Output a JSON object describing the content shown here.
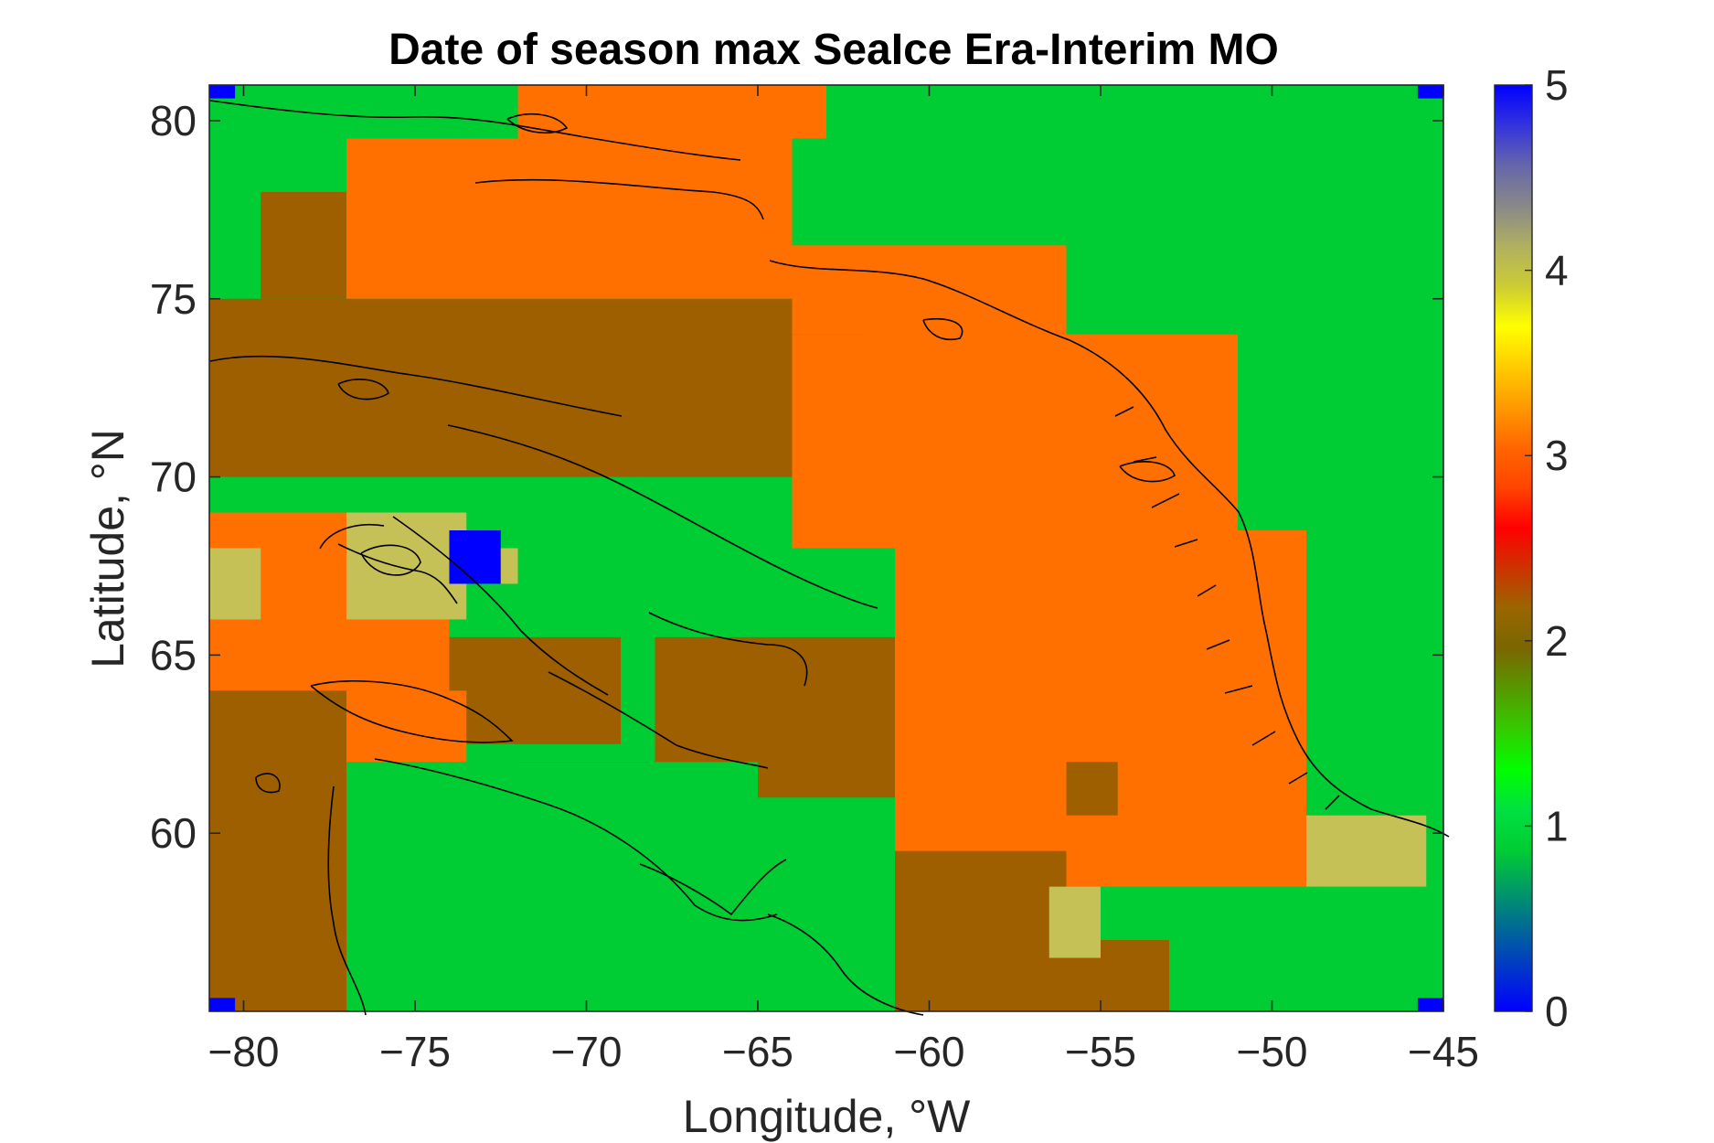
{
  "chart_data": {
    "type": "heatmap",
    "title": "Date of season max SeaIce Era-Interim MO",
    "xlabel": "Longitude, °W",
    "ylabel": "Latitude, °N",
    "xlim": [
      -81,
      -45
    ],
    "ylim": [
      55,
      81
    ],
    "xticks": [
      -80,
      -75,
      -70,
      -65,
      -60,
      -55,
      -50,
      -45
    ],
    "yticks": [
      60,
      65,
      70,
      75,
      80
    ],
    "cell_size_deg": [
      1.5,
      0.75
    ],
    "colorbar": {
      "range": [
        0,
        5
      ],
      "ticks": [
        0,
        1,
        2,
        3,
        4,
        5
      ],
      "placement": "right",
      "colormap": [
        "#0000ff",
        "#0033cc",
        "#006699",
        "#009966",
        "#00cc33",
        "#00e040",
        "#00ff00",
        "#33cc00",
        "#559900",
        "#7a6600",
        "#996600",
        "#cc3300",
        "#ff0000",
        "#ff4400",
        "#ff6600",
        "#ff9900",
        "#ffcc00",
        "#ffff00",
        "#cccc33",
        "#b0b060",
        "#888888",
        "#6666aa",
        "#3333dd",
        "#0000ff"
      ]
    },
    "category_colors": {
      "0": "#0000ff",
      "1": "#00cc33",
      "2": "#9d5f00",
      "3": "#ff7000",
      "4": "#c5c156",
      "5": "#0000ff"
    },
    "regions": [
      {
        "value": 1,
        "lon": [
          -81,
          -45
        ],
        "lat": [
          55,
          81
        ]
      },
      {
        "value": 3,
        "lon": [
          -77,
          -64
        ],
        "lat": [
          75,
          79.5
        ]
      },
      {
        "value": 3,
        "lon": [
          -72,
          -63
        ],
        "lat": [
          79.5,
          81
        ]
      },
      {
        "value": 2,
        "lon": [
          -81,
          -62
        ],
        "lat": [
          70,
          75
        ]
      },
      {
        "value": 2,
        "lon": [
          -79.5,
          -77
        ],
        "lat": [
          75,
          78
        ]
      },
      {
        "value": 3,
        "lon": [
          -64,
          -56
        ],
        "lat": [
          74,
          76.5
        ]
      },
      {
        "value": 3,
        "lon": [
          -64,
          -51
        ],
        "lat": [
          68,
          74
        ]
      },
      {
        "value": 3,
        "lon": [
          -61,
          -49
        ],
        "lat": [
          58.5,
          68.5
        ]
      },
      {
        "value": 3,
        "lon": [
          -53,
          -49
        ],
        "lat": [
          61,
          64
        ]
      },
      {
        "value": 2,
        "lon": [
          -56,
          -54.5
        ],
        "lat": [
          60.5,
          62
        ]
      },
      {
        "value": 2,
        "lon": [
          -61,
          -56
        ],
        "lat": [
          55,
          59.5
        ]
      },
      {
        "value": 2,
        "lon": [
          -56,
          -53
        ],
        "lat": [
          55,
          57
        ]
      },
      {
        "value": 4,
        "lon": [
          -56.5,
          -55
        ],
        "lat": [
          56.5,
          58.5
        ]
      },
      {
        "value": 4,
        "lon": [
          -49,
          -45.5
        ],
        "lat": [
          58.5,
          60.5
        ]
      },
      {
        "value": 1,
        "lon": [
          -66,
          -63.5
        ],
        "lat": [
          64.5,
          66.5
        ]
      },
      {
        "value": 2,
        "lon": [
          -68,
          -61
        ],
        "lat": [
          61,
          65.5
        ]
      },
      {
        "value": 2,
        "lon": [
          -72,
          -65
        ],
        "lat": [
          58.5,
          62
        ]
      },
      {
        "value": 2,
        "lon": [
          -76,
          -69
        ],
        "lat": [
          62.5,
          65.5
        ]
      },
      {
        "value": 3,
        "lon": [
          -81,
          -74
        ],
        "lat": [
          63.5,
          69
        ]
      },
      {
        "value": 3,
        "lon": [
          -78,
          -73.5
        ],
        "lat": [
          61.5,
          64
        ]
      },
      {
        "value": 4,
        "lon": [
          -81,
          -79.5
        ],
        "lat": [
          66,
          68
        ]
      },
      {
        "value": 4,
        "lon": [
          -77,
          -73.5
        ],
        "lat": [
          66,
          69
        ]
      },
      {
        "value": 4,
        "lon": [
          -73,
          -72
        ],
        "lat": [
          67,
          68
        ]
      },
      {
        "value": 0,
        "lon": [
          -74,
          -72.5
        ],
        "lat": [
          67,
          68.5
        ]
      },
      {
        "value": 2,
        "lon": [
          -81,
          -77
        ],
        "lat": [
          55,
          64
        ]
      },
      {
        "value": 1,
        "lon": [
          -77,
          -65
        ],
        "lat": [
          55,
          62
        ]
      }
    ]
  }
}
